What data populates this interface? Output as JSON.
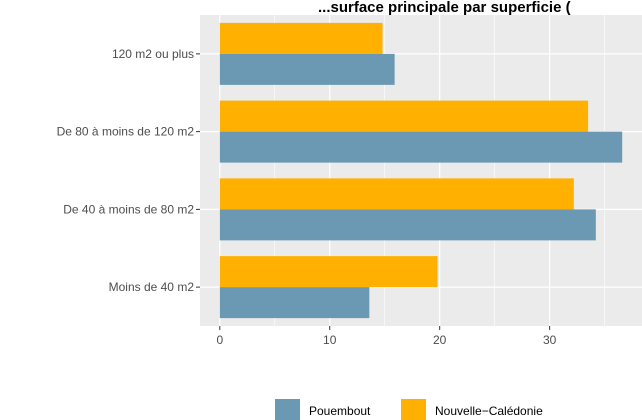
{
  "chart_data": {
    "type": "bar",
    "orientation": "horizontal",
    "title": "...surface principale par superficie (",
    "categories": [
      "120 m2 ou plus",
      "De 80 à moins de 120 m2",
      "De 40 à moins de 80 m2",
      "Moins de 40 m2"
    ],
    "series": [
      {
        "name": "Pouembout",
        "values": [
          15.9,
          36.6,
          34.2,
          13.6
        ],
        "color": "#6b98b2"
      },
      {
        "name": "Nouvelle−Calédonie",
        "values": [
          14.8,
          33.5,
          32.2,
          19.8
        ],
        "color": "#ffb000"
      }
    ],
    "xlim": [
      -1.8,
      38.4
    ],
    "xticks": [
      0,
      10,
      20,
      30
    ],
    "xlabel": "",
    "ylabel": "",
    "grid": true,
    "legend_position": "bottom",
    "panel_color": "#ebebeb",
    "grid_color": "#ffffff"
  }
}
